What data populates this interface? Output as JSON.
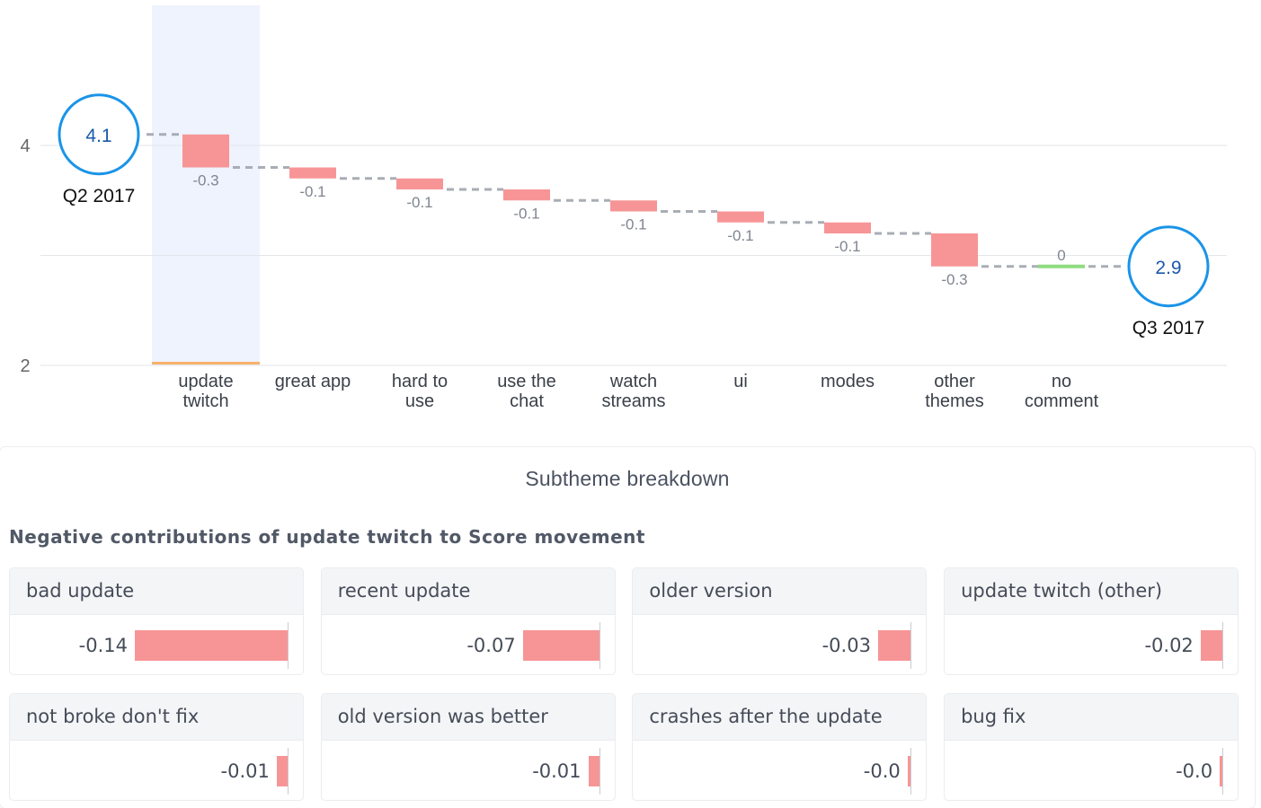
{
  "chart_data": {
    "type": "waterfall",
    "start": {
      "label": "Q2 2017",
      "value": 4.1,
      "display": "4.1"
    },
    "end": {
      "label": "Q3 2017",
      "value": 2.9,
      "display": "2.9"
    },
    "steps": [
      {
        "label": [
          "update",
          "twitch"
        ],
        "delta": -0.3,
        "display": "-0.3",
        "highlighted": true
      },
      {
        "label": [
          "great app"
        ],
        "delta": -0.1,
        "display": "-0.1"
      },
      {
        "label": [
          "hard to",
          "use"
        ],
        "delta": -0.1,
        "display": "-0.1"
      },
      {
        "label": [
          "use the",
          "chat"
        ],
        "delta": -0.1,
        "display": "-0.1"
      },
      {
        "label": [
          "watch",
          "streams"
        ],
        "delta": -0.1,
        "display": "-0.1"
      },
      {
        "label": [
          "ui"
        ],
        "delta": -0.1,
        "display": "-0.1"
      },
      {
        "label": [
          "modes"
        ],
        "delta": -0.1,
        "display": "-0.1"
      },
      {
        "label": [
          "other",
          "themes"
        ],
        "delta": -0.3,
        "display": "-0.3"
      },
      {
        "label": [
          "no",
          "comment"
        ],
        "delta": 0,
        "display": "0"
      }
    ],
    "y_ticks": [
      {
        "value": 4,
        "label": "4"
      },
      {
        "value": 3,
        "label": ""
      },
      {
        "value": 2,
        "label": "2"
      }
    ],
    "ylim": [
      2,
      4.5
    ],
    "grid": true,
    "colors": {
      "negative": "#f79596",
      "positive": "#8fdc7f",
      "circle": "#1a94e8",
      "circle_text": "#1b5aa8",
      "highlight": "#eef3fe",
      "highlight_base": "#f6b26b"
    }
  },
  "breakdown": {
    "title": "Subtheme breakdown",
    "subtitle": "Negative contributions of update twitch to Score movement",
    "items": [
      {
        "label": "bad update",
        "value": -0.14,
        "display": "-0.14"
      },
      {
        "label": "recent update",
        "value": -0.07,
        "display": "-0.07"
      },
      {
        "label": "older version",
        "value": -0.03,
        "display": "-0.03"
      },
      {
        "label": "update twitch (other)",
        "value": -0.02,
        "display": "-0.02"
      },
      {
        "label": "not broke don't fix",
        "value": -0.01,
        "display": "-0.01"
      },
      {
        "label": "old version was better",
        "value": -0.01,
        "display": "-0.01"
      },
      {
        "label": "crashes after the update",
        "value": -0.003,
        "display": "-0.0"
      },
      {
        "label": "bug fix",
        "value": -0.002,
        "display": "-0.0"
      }
    ]
  }
}
